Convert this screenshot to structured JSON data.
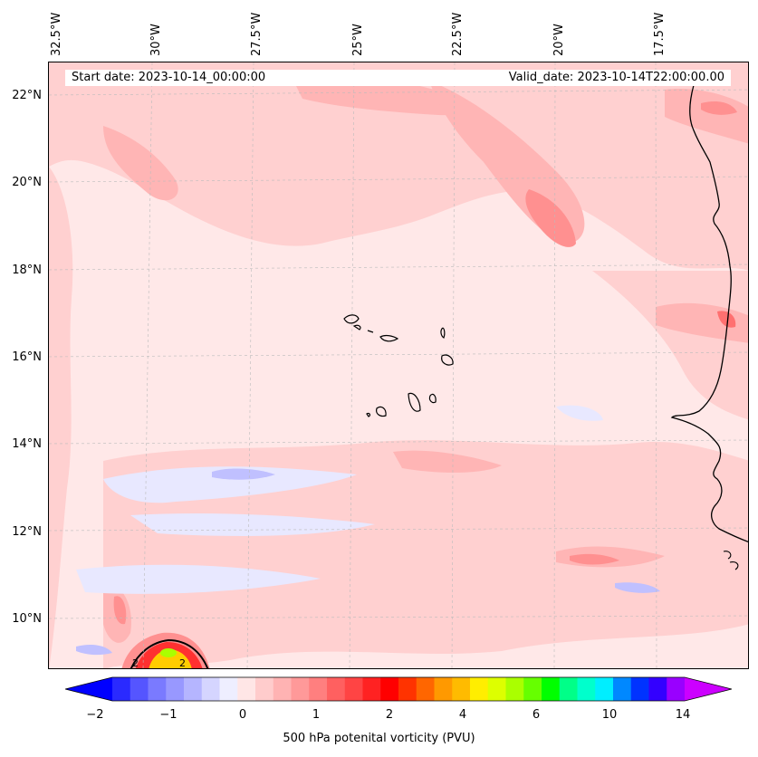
{
  "map": {
    "longitude_labels": [
      "32.5°W",
      "30°W",
      "27.5°W",
      "25°W",
      "22.5°W",
      "20°W",
      "17.5°W"
    ],
    "latitude_labels": [
      "22°N",
      "20°N",
      "18°N",
      "16°N",
      "14°N",
      "12°N",
      "10°N"
    ],
    "start_date": "Start date: 2023-10-14_00:00:00",
    "valid_date": "Valid_date: 2023-10-14T22:00:00.00",
    "contour_labels": [
      "2",
      "2"
    ],
    "colors": {
      "background": "#ffe8e8",
      "light_pink": "#ffd0d0",
      "pink": "#ffb5b5",
      "salmon": "#ff9090",
      "red": "#ff3030",
      "light_blue": "#e8e8ff",
      "blue": "#c0c0ff",
      "coastline": "#000000"
    }
  },
  "colorbar": {
    "label": "500 hPa potenital vorticity (PVU)",
    "tick_labels": [
      "−2",
      "−1",
      "0",
      "1",
      "2",
      "4",
      "6",
      "10",
      "14"
    ],
    "colors": [
      "#0000ff",
      "#2a2aff",
      "#5555ff",
      "#7a7aff",
      "#9898ff",
      "#b5b5ff",
      "#d5d5ff",
      "#eeeeff",
      "#ffe6e6",
      "#ffcccc",
      "#ffb3b3",
      "#ff9999",
      "#ff7f7f",
      "#ff6060",
      "#ff4444",
      "#ff2222",
      "#ff0000",
      "#ff3300",
      "#ff6600",
      "#ff9900",
      "#ffbb00",
      "#ffee00",
      "#ddff00",
      "#aaff00",
      "#66ff00",
      "#00ff00",
      "#00ff88",
      "#00ffcc",
      "#00eeff",
      "#0088ff",
      "#0033ff",
      "#3300ff",
      "#9900ff",
      "#cc00ff"
    ]
  }
}
